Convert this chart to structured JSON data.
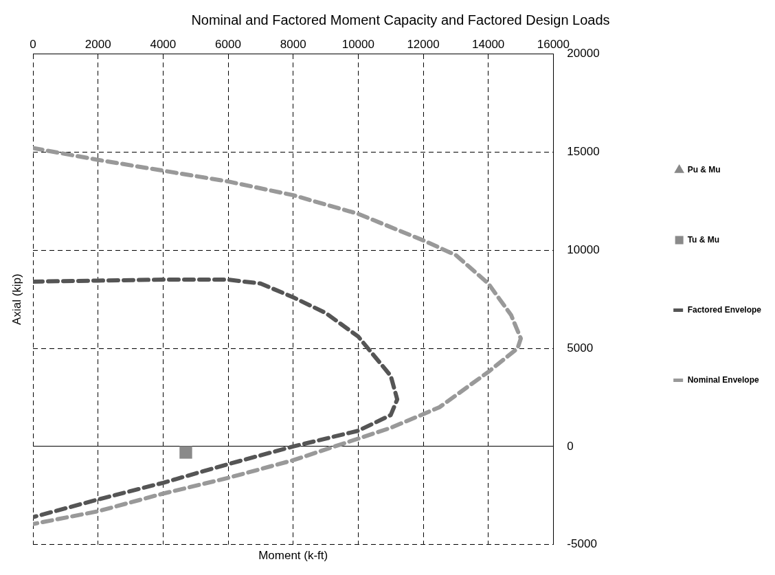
{
  "chart_data": {
    "type": "line",
    "title": "Nominal and Factored Moment Capacity and Factored Design Loads",
    "xlabel": "Moment (k-ft)",
    "ylabel": "Axial (kip)",
    "xlim": [
      0,
      16000
    ],
    "xticks": [
      0,
      2000,
      4000,
      6000,
      8000,
      10000,
      12000,
      14000,
      16000
    ],
    "ylim": [
      -5000,
      20000
    ],
    "yticks": [
      -5000,
      0,
      5000,
      10000,
      15000,
      20000
    ],
    "grid": true,
    "legend": "right",
    "series": [
      {
        "name": "Pu & Mu",
        "type": "scatter",
        "marker": "triangle",
        "color": "#888888"
      },
      {
        "name": "Tu & Mu",
        "type": "scatter",
        "marker": "square",
        "color": "#8a8a8a",
        "x": [
          4700
        ],
        "values": [
          -300
        ]
      },
      {
        "name": "Factored Envelope",
        "line_style": "dashed",
        "marker": "none",
        "color": "#555555",
        "x": [
          0,
          2000,
          4000,
          6000,
          7000,
          8000,
          9000,
          10000,
          10500,
          11000,
          11200,
          11000,
          10000,
          8000,
          6000,
          4000,
          2000,
          0
        ],
        "values": [
          8400,
          8450,
          8500,
          8500,
          8300,
          7600,
          6800,
          5600,
          4600,
          3600,
          2400,
          1600,
          800,
          0,
          -900,
          -1850,
          -2700,
          -3600
        ]
      },
      {
        "name": "Nominal Envelope",
        "line_style": "dashed",
        "marker": "none",
        "color": "#999999",
        "x": [
          0,
          2000,
          4000,
          6000,
          8000,
          10000,
          12000,
          13000,
          14000,
          14700,
          15000,
          14900,
          14000,
          12500,
          11000,
          10000,
          8000,
          6000,
          4000,
          2000,
          0
        ],
        "values": [
          15200,
          14600,
          14050,
          13500,
          12800,
          11850,
          10500,
          9750,
          8300,
          6700,
          5500,
          5000,
          3800,
          2000,
          950,
          400,
          -700,
          -1600,
          -2400,
          -3300,
          -3950
        ]
      }
    ]
  }
}
